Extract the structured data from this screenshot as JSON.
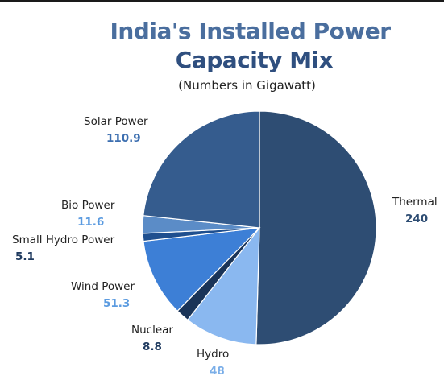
{
  "chart_data": {
    "type": "pie",
    "title": "India's Installed Power Capacity Mix",
    "title_lines": [
      "India's Installed Power",
      "Capacity Mix"
    ],
    "subtitle": "(Numbers in Gigawatt)",
    "slices": [
      {
        "label": "Thermal",
        "value": 240,
        "value_label": "240",
        "color": "#2e4d73",
        "value_color": "#2e4d73"
      },
      {
        "label": "Hydro",
        "value": 48,
        "value_label": "48",
        "color": "#8ab8f0",
        "value_color": "#7aaee8"
      },
      {
        "label": "Nuclear",
        "value": 8.8,
        "value_label": "8.8",
        "color": "#1a3458",
        "value_color": "#1f3a5f"
      },
      {
        "label": "Wind Power",
        "value": 51.3,
        "value_label": "51.3",
        "color": "#3d7fd6",
        "value_color": "#5b9be0"
      },
      {
        "label": "Small Hydro Power",
        "value": 5.1,
        "value_label": "5.1",
        "color": "#1f4f8f",
        "value_color": "#1f3a5f"
      },
      {
        "label": "Bio Power",
        "value": 11.6,
        "value_label": "11.6",
        "color": "#5b8cc7",
        "value_color": "#5b9be0"
      },
      {
        "label": "Solar Power",
        "value": 110.9,
        "value_label": "110.9",
        "color": "#355c8e",
        "value_color": "#3d6fb0"
      }
    ],
    "start_angle_deg": 0,
    "direction": "clockwise"
  }
}
